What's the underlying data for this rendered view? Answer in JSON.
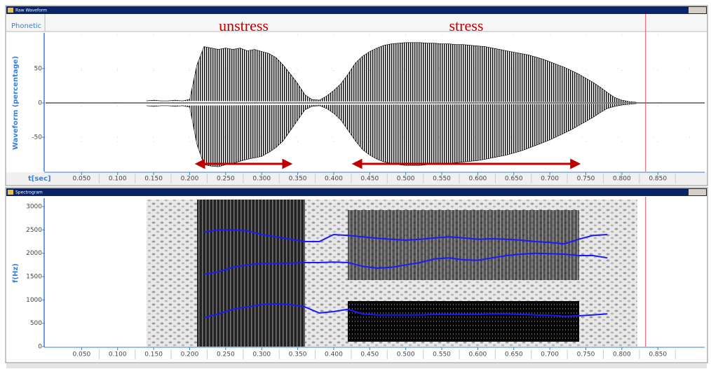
{
  "chart_data": [
    {
      "type": "area",
      "window_title": "Raw Waveform",
      "tab": "Phonetic",
      "ylabel": "Waveform (percentage)",
      "xlabel": "t[sec]",
      "xlim": [
        0,
        0.915
      ],
      "ylim": [
        -100,
        100
      ],
      "grid": true,
      "xticks": [
        {
          "value": 0.05,
          "label": "0.050"
        },
        {
          "value": 0.1,
          "label": "0.100"
        },
        {
          "value": 0.15,
          "label": "0.150"
        },
        {
          "value": 0.2,
          "label": "0.200"
        },
        {
          "value": 0.25,
          "label": "0.250"
        },
        {
          "value": 0.3,
          "label": "0.300"
        },
        {
          "value": 0.35,
          "label": "0.350"
        },
        {
          "value": 0.4,
          "label": "0.400"
        },
        {
          "value": 0.45,
          "label": "0.450"
        },
        {
          "value": 0.5,
          "label": "0.500"
        },
        {
          "value": 0.55,
          "label": "0.550"
        },
        {
          "value": 0.6,
          "label": "0.600"
        },
        {
          "value": 0.65,
          "label": "0.650"
        },
        {
          "value": 0.7,
          "label": "0.700"
        },
        {
          "value": 0.75,
          "label": "0.750"
        },
        {
          "value": 0.8,
          "label": "0.800"
        },
        {
          "value": 0.85,
          "label": "0.850"
        }
      ],
      "yticks": [
        -50,
        0,
        50
      ],
      "x": [
        0.14,
        0.15,
        0.16,
        0.17,
        0.18,
        0.19,
        0.2,
        0.21,
        0.22,
        0.23,
        0.24,
        0.25,
        0.26,
        0.27,
        0.28,
        0.29,
        0.3,
        0.31,
        0.32,
        0.33,
        0.34,
        0.35,
        0.36,
        0.37,
        0.38,
        0.39,
        0.4,
        0.41,
        0.42,
        0.43,
        0.44,
        0.45,
        0.46,
        0.47,
        0.48,
        0.49,
        0.5,
        0.51,
        0.52,
        0.53,
        0.54,
        0.55,
        0.56,
        0.57,
        0.58,
        0.59,
        0.6,
        0.61,
        0.62,
        0.63,
        0.64,
        0.65,
        0.66,
        0.67,
        0.68,
        0.69,
        0.7,
        0.71,
        0.72,
        0.73,
        0.74,
        0.75,
        0.76,
        0.77,
        0.78,
        0.79,
        0.8,
        0.81,
        0.82
      ],
      "series": [
        {
          "color": "#000000",
          "values": [
            3,
            4,
            3,
            3,
            4,
            3,
            5,
            55,
            82,
            80,
            78,
            80,
            78,
            80,
            76,
            78,
            75,
            72,
            66,
            55,
            42,
            28,
            12,
            5,
            4,
            10,
            18,
            28,
            42,
            58,
            68,
            75,
            80,
            84,
            86,
            87,
            88,
            88,
            88,
            87,
            87,
            86,
            86,
            85,
            85,
            84,
            83,
            82,
            80,
            78,
            76,
            74,
            72,
            70,
            67,
            64,
            60,
            56,
            52,
            47,
            42,
            36,
            30,
            23,
            15,
            8,
            4,
            2,
            1
          ]
        },
        {
          "color": "#000000",
          "values": [
            -4,
            -5,
            -4,
            -4,
            -5,
            -4,
            -6,
            -60,
            -90,
            -92,
            -93,
            -90,
            -88,
            -85,
            -82,
            -80,
            -78,
            -72,
            -65,
            -55,
            -40,
            -25,
            -10,
            -5,
            -4,
            -8,
            -15,
            -25,
            -40,
            -55,
            -68,
            -76,
            -82,
            -86,
            -88,
            -90,
            -91,
            -91,
            -91,
            -90,
            -90,
            -89,
            -88,
            -87,
            -86,
            -85,
            -84,
            -82,
            -80,
            -78,
            -76,
            -73,
            -70,
            -66,
            -62,
            -58,
            -54,
            -49,
            -44,
            -39,
            -33,
            -27,
            -21,
            -14,
            -8,
            -5,
            -3,
            -2,
            -1
          ]
        }
      ],
      "annotations": [
        {
          "text": "unstress",
          "start": 0.21,
          "end": 0.34,
          "color": "#c00000"
        },
        {
          "text": "stress",
          "start": 0.428,
          "end": 0.74,
          "color": "#c00000"
        }
      ],
      "cursor": 0.833,
      "cursor_color": "#e05050"
    },
    {
      "type": "line",
      "window_title": "Spectrogram",
      "ylabel": "f(Hz)",
      "xlim": [
        0,
        0.915
      ],
      "ylim": [
        0,
        3150
      ],
      "grid": false,
      "xticks": [
        {
          "value": 0.05,
          "label": "0.050"
        },
        {
          "value": 0.1,
          "label": "0.100"
        },
        {
          "value": 0.15,
          "label": "0.150"
        },
        {
          "value": 0.2,
          "label": "0.200"
        },
        {
          "value": 0.25,
          "label": "0.250"
        },
        {
          "value": 0.3,
          "label": "0.300"
        },
        {
          "value": 0.35,
          "label": "0.350"
        },
        {
          "value": 0.4,
          "label": "0.400"
        },
        {
          "value": 0.45,
          "label": "0.450"
        },
        {
          "value": 0.5,
          "label": "0.500"
        },
        {
          "value": 0.55,
          "label": "0.550"
        },
        {
          "value": 0.6,
          "label": "0.600"
        },
        {
          "value": 0.65,
          "label": "0.650"
        },
        {
          "value": 0.7,
          "label": "0.700"
        },
        {
          "value": 0.75,
          "label": "0.750"
        },
        {
          "value": 0.8,
          "label": "0.800"
        },
        {
          "value": 0.85,
          "label": "0.850"
        }
      ],
      "yticks": [
        0,
        500,
        1000,
        1500,
        2000,
        2500,
        3000
      ],
      "x": [
        0.22,
        0.24,
        0.26,
        0.28,
        0.3,
        0.32,
        0.34,
        0.36,
        0.38,
        0.4,
        0.42,
        0.44,
        0.46,
        0.48,
        0.5,
        0.52,
        0.54,
        0.56,
        0.58,
        0.6,
        0.62,
        0.64,
        0.66,
        0.68,
        0.7,
        0.72,
        0.74,
        0.76,
        0.78
      ],
      "series": [
        {
          "color": "#1a1aff",
          "values": [
            620,
            700,
            800,
            850,
            900,
            920,
            900,
            850,
            720,
            750,
            800,
            700,
            680,
            680,
            680,
            680,
            690,
            690,
            690,
            690,
            700,
            700,
            690,
            680,
            670,
            650,
            660,
            680,
            700
          ]
        },
        {
          "color": "#1a1aff",
          "values": [
            1550,
            1600,
            1700,
            1750,
            1780,
            1780,
            1790,
            1800,
            1800,
            1810,
            1800,
            1720,
            1680,
            1700,
            1750,
            1800,
            1880,
            1900,
            1860,
            1850,
            1900,
            1950,
            1980,
            2000,
            1990,
            1980,
            1950,
            1950,
            1900
          ]
        },
        {
          "color": "#1a1aff",
          "values": [
            2450,
            2500,
            2500,
            2480,
            2400,
            2350,
            2300,
            2250,
            2250,
            2400,
            2380,
            2350,
            2320,
            2300,
            2280,
            2300,
            2330,
            2350,
            2330,
            2300,
            2310,
            2300,
            2280,
            2250,
            2230,
            2200,
            2300,
            2380,
            2400
          ]
        }
      ],
      "cursor": 0.833,
      "cursor_color": "#e05050"
    }
  ]
}
